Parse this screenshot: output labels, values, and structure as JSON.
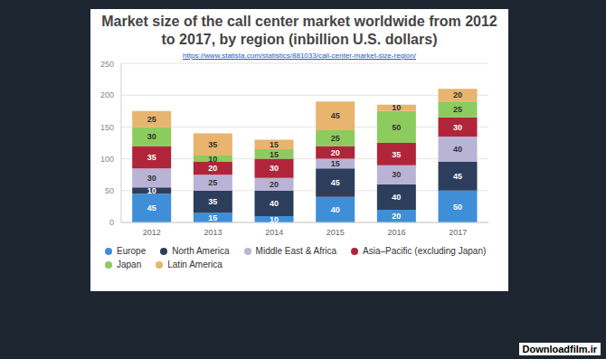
{
  "chart_data": {
    "type": "bar",
    "title": "Market size of the call center market worldwide from 2012 to 2017, by region (inbillion U.S. dollars)",
    "subtitle": "https://www.statista.com/statistics/881033/call-center-market-size-region/",
    "watermark": "Downloadfilm.ir",
    "categories": [
      "2012",
      "2013",
      "2014",
      "2015",
      "2016",
      "2017"
    ],
    "series": [
      {
        "name": "Europe",
        "color": "#3f8fd8",
        "values": [
          45,
          15,
          10,
          40,
          20,
          50
        ]
      },
      {
        "name": "North America",
        "color": "#2c3e5c",
        "values": [
          10,
          35,
          40,
          45,
          40,
          45
        ]
      },
      {
        "name": "Middle East & Africa",
        "color": "#b9b3d6",
        "values": [
          30,
          25,
          20,
          15,
          30,
          40
        ]
      },
      {
        "name": "Asia–Pacific (excluding Japan)",
        "color": "#b0253a",
        "values": [
          35,
          20,
          30,
          20,
          35,
          30
        ]
      },
      {
        "name": "Japan",
        "color": "#8ccc5f",
        "values": [
          30,
          10,
          15,
          25,
          50,
          25
        ]
      },
      {
        "name": "Latin America",
        "color": "#e8b46e",
        "values": [
          25,
          35,
          15,
          45,
          10,
          20
        ]
      }
    ],
    "ylim": [
      0,
      250
    ],
    "yticks": [
      0,
      50,
      100,
      150,
      200,
      250
    ],
    "grid": true,
    "stacked": true,
    "data_labels": true,
    "legend": "bottom"
  }
}
